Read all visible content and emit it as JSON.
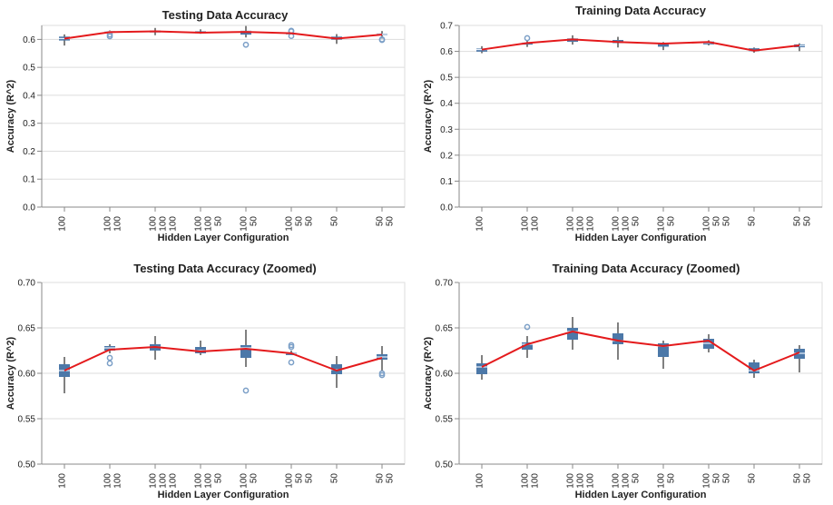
{
  "colors": {
    "box": "#4c78a8",
    "median": "#e9f1fb",
    "whisker": "#555555",
    "line": "#e41a1c",
    "outlier": "#7b9fc7"
  },
  "chart_data": [
    {
      "type": "box",
      "title": "Testing Data Accuracy",
      "xlabel": "Hidden Layer Configuration",
      "ylabel": "Accuracy (R^2)",
      "ylim": [
        0,
        0.65
      ],
      "yticks": [
        "0.0",
        "0.1",
        "0.2",
        "0.3",
        "0.4",
        "0.5",
        "0.6"
      ],
      "categories": [
        [
          "100"
        ],
        [
          "100",
          "100"
        ],
        [
          "100",
          "100",
          "100"
        ],
        [
          "100",
          "100",
          "50"
        ],
        [
          "100",
          "50"
        ],
        [
          "100",
          "50",
          "50"
        ],
        [
          "50"
        ],
        [
          "50",
          "50"
        ]
      ],
      "boxes": [
        {
          "min": 0.578,
          "q1": 0.596,
          "median": 0.603,
          "q3": 0.61,
          "max": 0.618,
          "outliers": []
        },
        {
          "min": 0.622,
          "q1": 0.625,
          "median": 0.628,
          "q3": 0.63,
          "max": 0.632,
          "outliers": [
            0.611,
            0.617
          ]
        },
        {
          "min": 0.615,
          "q1": 0.625,
          "median": 0.629,
          "q3": 0.632,
          "max": 0.641,
          "outliers": []
        },
        {
          "min": 0.62,
          "q1": 0.622,
          "median": 0.625,
          "q3": 0.629,
          "max": 0.636,
          "outliers": []
        },
        {
          "min": 0.607,
          "q1": 0.617,
          "median": 0.628,
          "q3": 0.631,
          "max": 0.648,
          "outliers": [
            0.581
          ]
        },
        {
          "min": 0.62,
          "q1": 0.62,
          "median": 0.622,
          "q3": 0.623,
          "max": 0.625,
          "outliers": [
            0.612,
            0.629,
            0.631
          ]
        },
        {
          "min": 0.584,
          "q1": 0.599,
          "median": 0.604,
          "q3": 0.61,
          "max": 0.619,
          "outliers": []
        },
        {
          "min": 0.603,
          "q1": 0.615,
          "median": 0.618,
          "q3": 0.621,
          "max": 0.63,
          "outliers": [
            0.598,
            0.6
          ]
        }
      ],
      "line": [
        0.603,
        0.626,
        0.629,
        0.624,
        0.627,
        0.622,
        0.603,
        0.617
      ]
    },
    {
      "type": "box",
      "title": "Training Data Accuracy",
      "xlabel": "Hidden Layer Configuration",
      "ylabel": "Accuracy (R^2)",
      "ylim": [
        0,
        0.7
      ],
      "yticks": [
        "0.0",
        "0.1",
        "0.2",
        "0.3",
        "0.4",
        "0.5",
        "0.6",
        "0.7"
      ],
      "categories": [
        [
          "100"
        ],
        [
          "100",
          "100"
        ],
        [
          "100",
          "100",
          "100"
        ],
        [
          "100",
          "100",
          "50"
        ],
        [
          "100",
          "50"
        ],
        [
          "100",
          "50",
          "50"
        ],
        [
          "50"
        ],
        [
          "50",
          "50"
        ]
      ],
      "boxes": [
        {
          "min": 0.593,
          "q1": 0.599,
          "median": 0.607,
          "q3": 0.611,
          "max": 0.62,
          "outliers": []
        },
        {
          "min": 0.617,
          "q1": 0.626,
          "median": 0.632,
          "q3": 0.634,
          "max": 0.641,
          "outliers": [
            0.651
          ]
        },
        {
          "min": 0.626,
          "q1": 0.637,
          "median": 0.646,
          "q3": 0.65,
          "max": 0.662,
          "outliers": []
        },
        {
          "min": 0.615,
          "q1": 0.632,
          "median": 0.636,
          "q3": 0.644,
          "max": 0.656,
          "outliers": []
        },
        {
          "min": 0.605,
          "q1": 0.618,
          "median": 0.63,
          "q3": 0.633,
          "max": 0.636,
          "outliers": []
        },
        {
          "min": 0.623,
          "q1": 0.627,
          "median": 0.633,
          "q3": 0.638,
          "max": 0.643,
          "outliers": []
        },
        {
          "min": 0.595,
          "q1": 0.6,
          "median": 0.603,
          "q3": 0.612,
          "max": 0.615,
          "outliers": []
        },
        {
          "min": 0.601,
          "q1": 0.616,
          "median": 0.622,
          "q3": 0.627,
          "max": 0.631,
          "outliers": []
        }
      ],
      "line": [
        0.607,
        0.632,
        0.646,
        0.636,
        0.63,
        0.636,
        0.603,
        0.623
      ]
    },
    {
      "type": "box",
      "title": "Testing Data Accuracy (Zoomed)",
      "xlabel": "Hidden Layer Configuration",
      "ylabel": "Accuracy (R^2)",
      "ylim": [
        0.5,
        0.7
      ],
      "yticks": [
        "0.50",
        "0.55",
        "0.60",
        "0.65",
        "0.70"
      ],
      "categories": [
        [
          "100"
        ],
        [
          "100",
          "100"
        ],
        [
          "100",
          "100",
          "100"
        ],
        [
          "100",
          "100",
          "50"
        ],
        [
          "100",
          "50"
        ],
        [
          "100",
          "50",
          "50"
        ],
        [
          "50"
        ],
        [
          "50",
          "50"
        ]
      ],
      "boxes": [
        {
          "min": 0.578,
          "q1": 0.596,
          "median": 0.603,
          "q3": 0.61,
          "max": 0.618,
          "outliers": []
        },
        {
          "min": 0.622,
          "q1": 0.625,
          "median": 0.628,
          "q3": 0.63,
          "max": 0.632,
          "outliers": [
            0.611,
            0.617
          ]
        },
        {
          "min": 0.615,
          "q1": 0.625,
          "median": 0.629,
          "q3": 0.632,
          "max": 0.641,
          "outliers": []
        },
        {
          "min": 0.62,
          "q1": 0.622,
          "median": 0.625,
          "q3": 0.629,
          "max": 0.636,
          "outliers": []
        },
        {
          "min": 0.607,
          "q1": 0.617,
          "median": 0.628,
          "q3": 0.631,
          "max": 0.648,
          "outliers": [
            0.581
          ]
        },
        {
          "min": 0.62,
          "q1": 0.62,
          "median": 0.622,
          "q3": 0.623,
          "max": 0.625,
          "outliers": [
            0.612,
            0.629,
            0.631
          ]
        },
        {
          "min": 0.584,
          "q1": 0.599,
          "median": 0.604,
          "q3": 0.61,
          "max": 0.619,
          "outliers": []
        },
        {
          "min": 0.603,
          "q1": 0.615,
          "median": 0.618,
          "q3": 0.621,
          "max": 0.63,
          "outliers": [
            0.598,
            0.6
          ]
        }
      ],
      "line": [
        0.603,
        0.626,
        0.629,
        0.624,
        0.627,
        0.622,
        0.603,
        0.617
      ]
    },
    {
      "type": "box",
      "title": "Training Data Accuracy (Zoomed)",
      "xlabel": "Hidden Layer Configuration",
      "ylabel": "Accuracy (R^2)",
      "ylim": [
        0.5,
        0.7
      ],
      "yticks": [
        "0.50",
        "0.55",
        "0.60",
        "0.65",
        "0.70"
      ],
      "categories": [
        [
          "100"
        ],
        [
          "100",
          "100"
        ],
        [
          "100",
          "100",
          "100"
        ],
        [
          "100",
          "100",
          "50"
        ],
        [
          "100",
          "50"
        ],
        [
          "100",
          "50",
          "50"
        ],
        [
          "50"
        ],
        [
          "50",
          "50"
        ]
      ],
      "boxes": [
        {
          "min": 0.593,
          "q1": 0.599,
          "median": 0.607,
          "q3": 0.611,
          "max": 0.62,
          "outliers": []
        },
        {
          "min": 0.617,
          "q1": 0.626,
          "median": 0.632,
          "q3": 0.634,
          "max": 0.641,
          "outliers": [
            0.651
          ]
        },
        {
          "min": 0.626,
          "q1": 0.637,
          "median": 0.646,
          "q3": 0.65,
          "max": 0.662,
          "outliers": []
        },
        {
          "min": 0.615,
          "q1": 0.632,
          "median": 0.636,
          "q3": 0.644,
          "max": 0.656,
          "outliers": []
        },
        {
          "min": 0.605,
          "q1": 0.618,
          "median": 0.63,
          "q3": 0.633,
          "max": 0.636,
          "outliers": []
        },
        {
          "min": 0.623,
          "q1": 0.627,
          "median": 0.633,
          "q3": 0.638,
          "max": 0.643,
          "outliers": []
        },
        {
          "min": 0.595,
          "q1": 0.6,
          "median": 0.603,
          "q3": 0.612,
          "max": 0.615,
          "outliers": []
        },
        {
          "min": 0.601,
          "q1": 0.616,
          "median": 0.622,
          "q3": 0.627,
          "max": 0.631,
          "outliers": []
        }
      ],
      "line": [
        0.607,
        0.632,
        0.646,
        0.636,
        0.63,
        0.636,
        0.603,
        0.623
      ]
    }
  ]
}
